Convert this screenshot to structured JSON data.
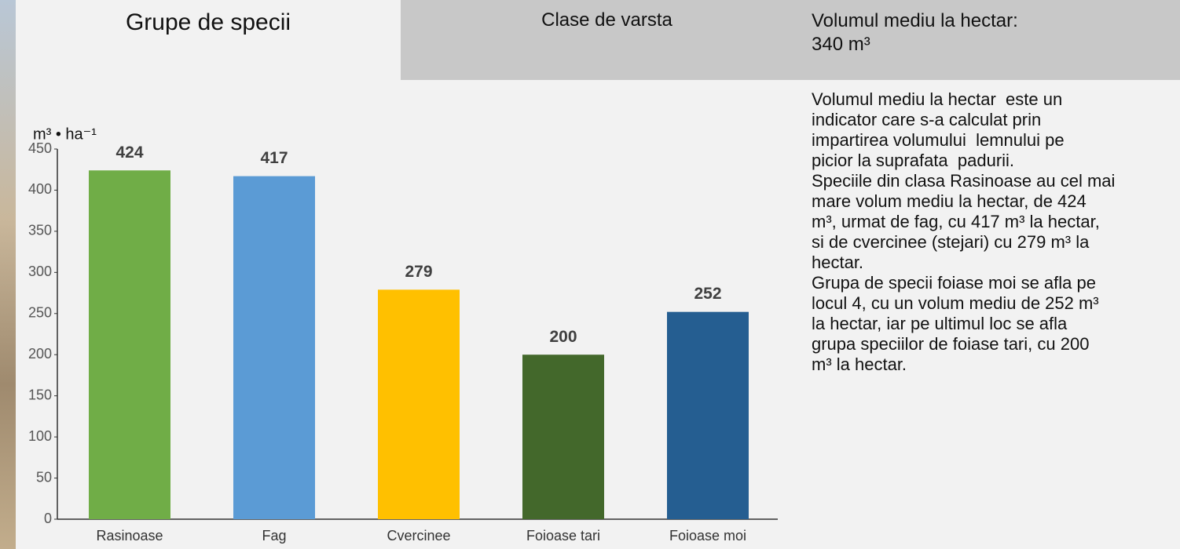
{
  "tabs": [
    "Grupe de specii",
    "Clase de varsta"
  ],
  "summary": {
    "title": "Volumul mediu la hectar:",
    "value": "340 m³"
  },
  "info": {
    "lines": [
      "Volumul mediu la hectar  este un",
      "indicator care s-a calculat prin",
      "impartirea volumului  lemnului pe",
      "picior la suprafata  padurii.",
      "Speciile din clasa Rasinoase au cel mai",
      "mare volum mediu la hectar, de 424",
      "m³, urmat de fag, cu 417 m³ la hectar,",
      "si de cvercinee (stejari) cu 279 m³ la",
      "hectar.",
      "Grupa de specii foiase moi se afla pe",
      "locul 4, cu un volum mediu de 252 m³",
      "la hectar, iar pe ultimul loc se afla",
      "grupa speciilor de foiase tari, cu 200",
      "m³ la hectar."
    ]
  },
  "chart_data": {
    "type": "bar",
    "y_label": "m³ • ha⁻¹",
    "categories": [
      "Rasinoase",
      "Fag",
      "Cvercinee",
      "Foioase tari",
      "Foioase moi"
    ],
    "values": [
      424,
      417,
      279,
      200,
      252
    ],
    "colors": [
      "#70ad47",
      "#5b9bd5",
      "#ffc000",
      "#43682b",
      "#255e91"
    ],
    "ylim": [
      0,
      450
    ],
    "yticks": [
      0,
      50,
      100,
      150,
      200,
      250,
      300,
      350,
      400,
      450
    ]
  }
}
